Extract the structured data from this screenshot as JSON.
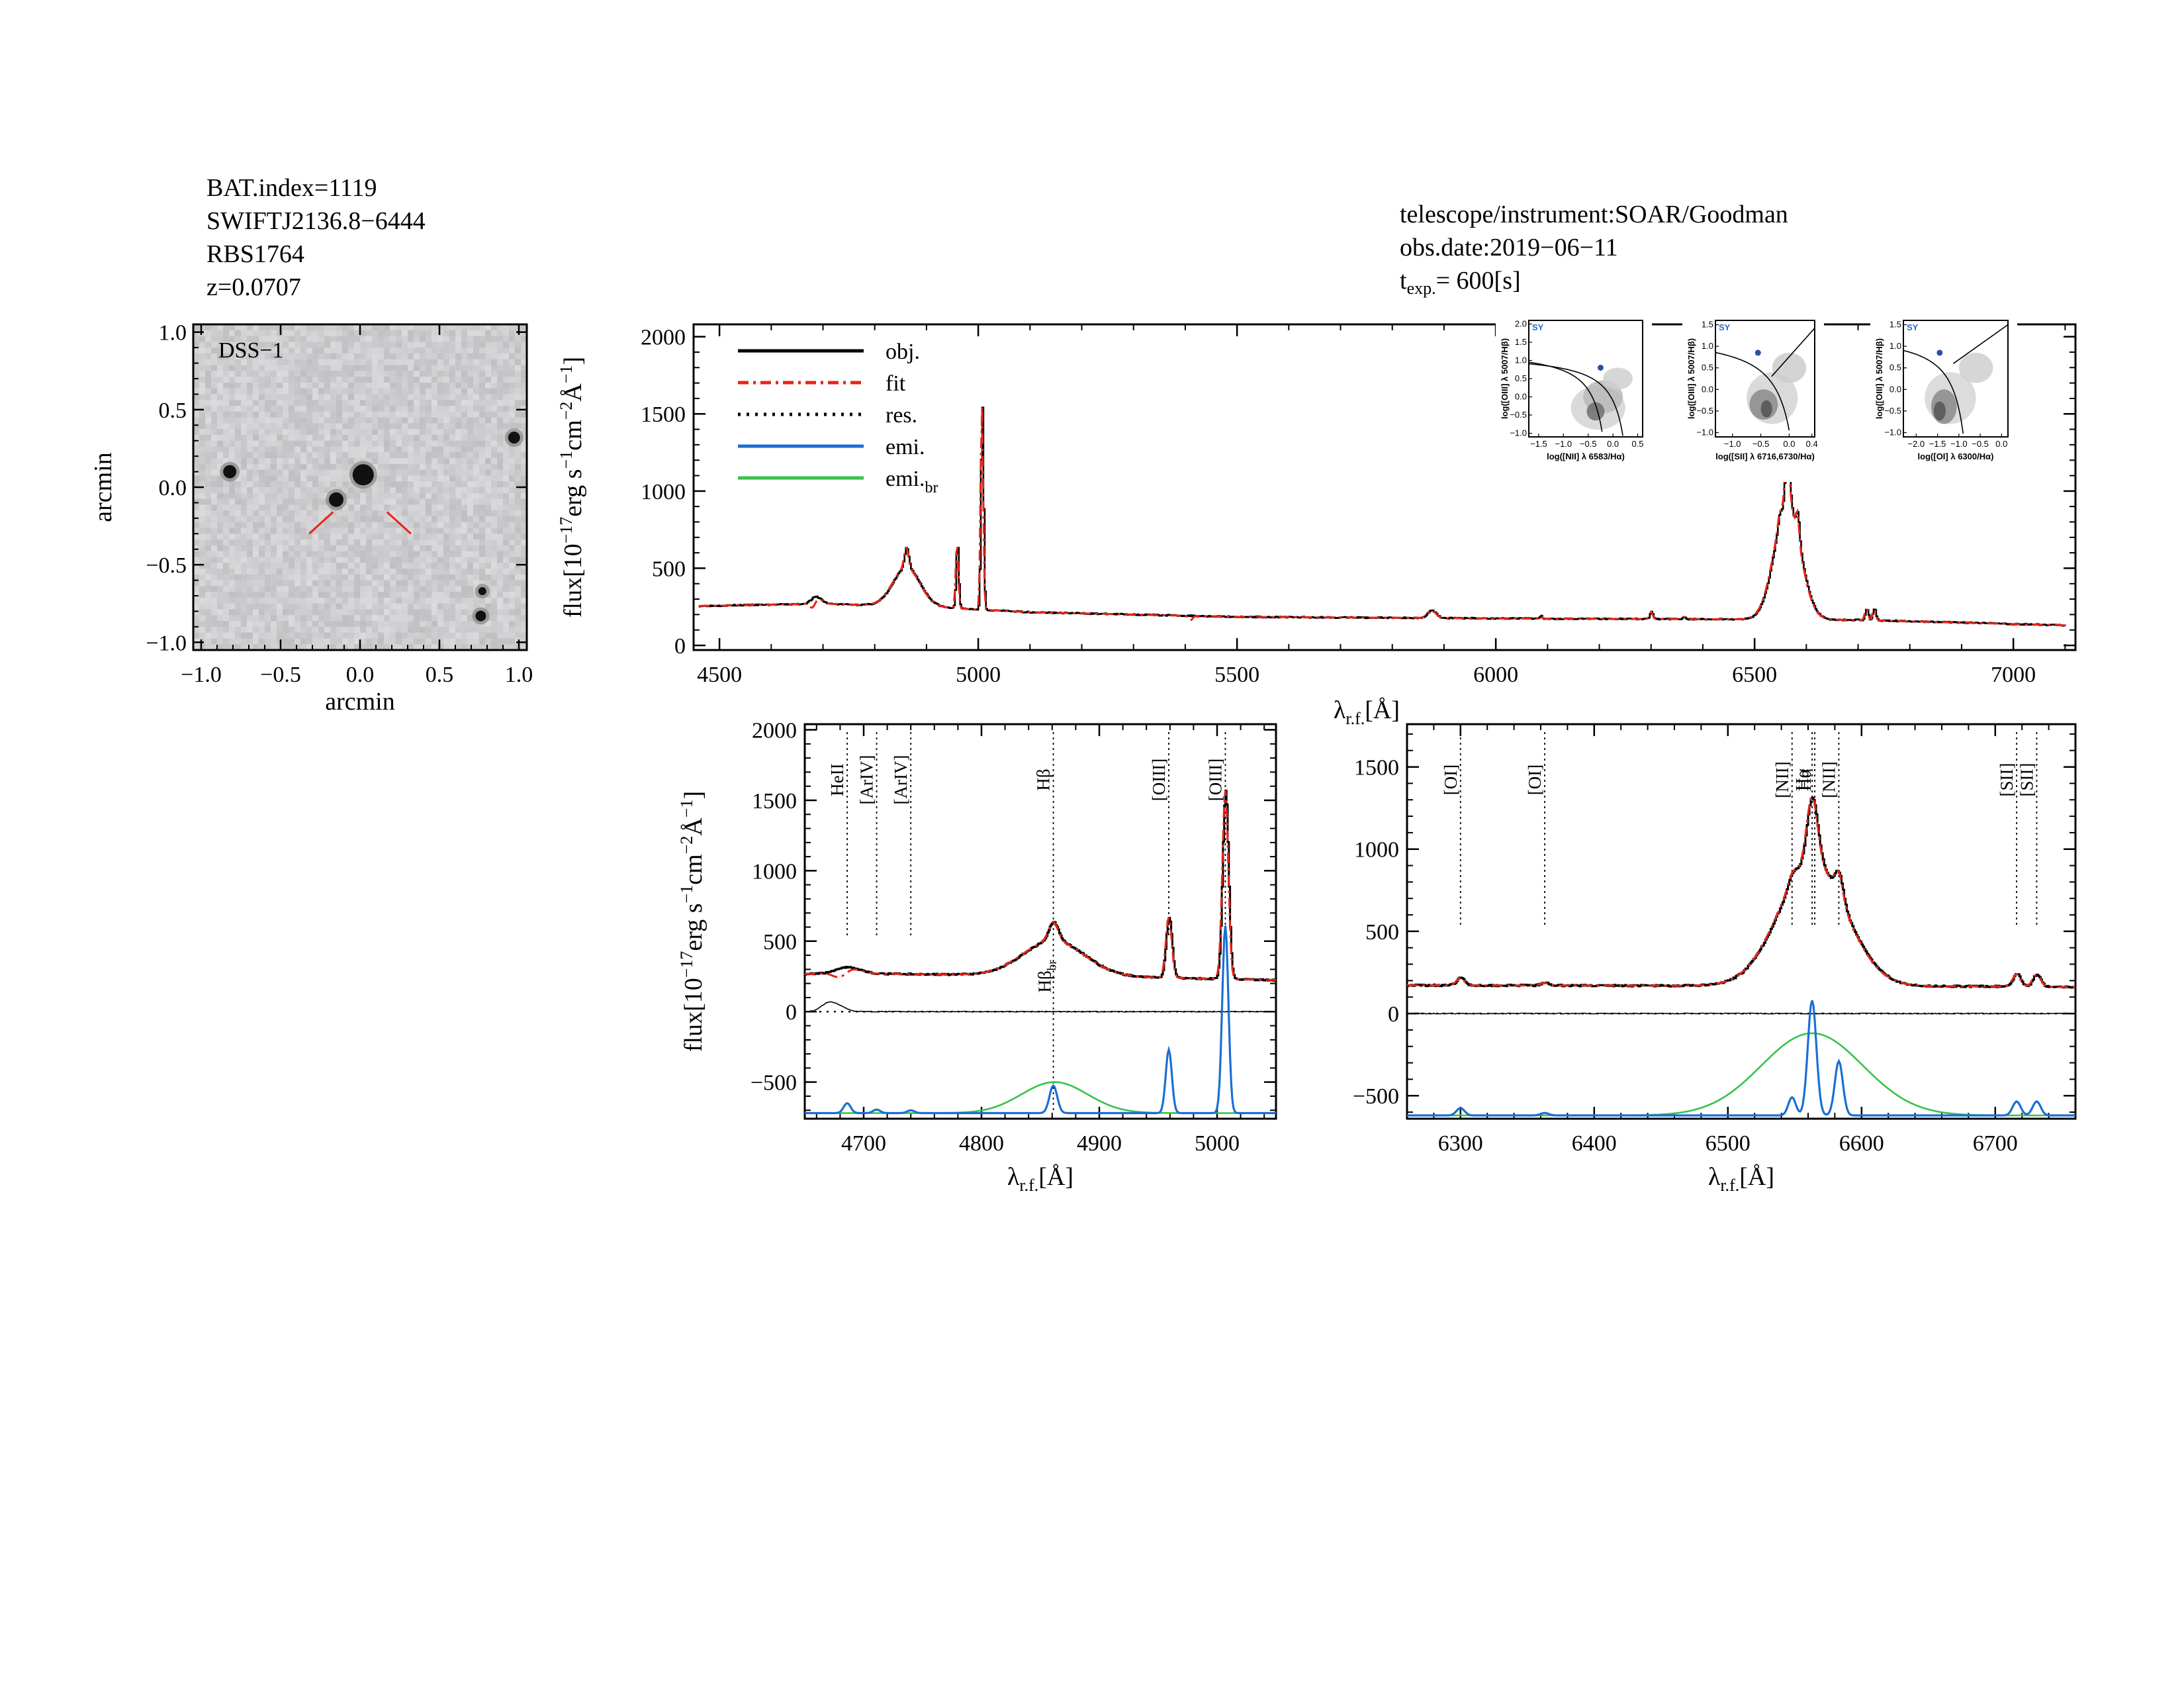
{
  "header": {
    "left": [
      "BAT.index=1119",
      "SWIFTJ2136.8−6444",
      "RBS1764",
      "z=0.0707"
    ],
    "right": [
      "telescope/instrument:SOAR/Goodman",
      "obs.date:2019−06−11"
    ],
    "texp_label": "t",
    "texp_sub": "exp.",
    "texp_value": "=  600[s]"
  },
  "image_panel": {
    "label": "DSS−1",
    "xlabel": "arcmin",
    "ylabel": "arcmin",
    "xticks": [
      "−1.0",
      "−0.5",
      "0.0",
      "0.5",
      "1.0"
    ],
    "yticks": [
      "−1.0",
      "−0.5",
      "0.0",
      "0.5",
      "1.0"
    ],
    "marker_color": "#e8231a"
  },
  "chart_data": [
    {
      "type": "line",
      "name": "full-spectrum",
      "xlim": [
        4450,
        7120
      ],
      "ylim": [
        -30,
        2080
      ],
      "xticks": [
        4500,
        5000,
        5500,
        6000,
        6500,
        7000
      ],
      "yticks": [
        0,
        500,
        1000,
        1500,
        2000
      ],
      "xlabel": "λr.f.[Å]",
      "ylabel": "flux[10⁻¹⁷erg s⁻¹cm⁻²Å⁻¹]",
      "legend": {
        "placement": "top-left",
        "entries": [
          "obj.",
          "fit",
          "res.",
          "emi.",
          "emi.br"
        ]
      },
      "continuum": [
        [
          4450,
          255
        ],
        [
          4700,
          270
        ],
        [
          4900,
          250
        ],
        [
          5100,
          215
        ],
        [
          5500,
          185
        ],
        [
          6000,
          175
        ],
        [
          6400,
          170
        ],
        [
          6700,
          165
        ],
        [
          7100,
          130
        ]
      ],
      "lines_obj": [
        {
          "center": 4686,
          "amp": 45,
          "sigma": 10
        },
        {
          "center": 4861,
          "amp": 250,
          "sigma": 26
        },
        {
          "center": 4861,
          "amp": 130,
          "sigma": 4
        },
        {
          "center": 4959,
          "amp": 430,
          "sigma": 2.5
        },
        {
          "center": 5007,
          "amp": 1340,
          "sigma": 2.5
        },
        {
          "center": 5876,
          "amp": 50,
          "sigma": 8
        },
        {
          "center": 6087,
          "amp": 20,
          "sigma": 2
        },
        {
          "center": 6300,
          "amp": 45,
          "sigma": 3
        },
        {
          "center": 6363,
          "amp": 15,
          "sigma": 3
        },
        {
          "center": 6563,
          "amp": 750,
          "sigma": 25
        },
        {
          "center": 6563,
          "amp": 400,
          "sigma": 4
        },
        {
          "center": 6583,
          "amp": 150,
          "sigma": 3
        },
        {
          "center": 6548,
          "amp": 60,
          "sigma": 3
        },
        {
          "center": 6716,
          "amp": 75,
          "sigma": 3
        },
        {
          "center": 6731,
          "amp": 75,
          "sigma": 3
        }
      ],
      "fit_dips": [
        {
          "center": 4680,
          "amp": -60,
          "sigma": 6
        },
        {
          "center": 5410,
          "amp": -30,
          "sigma": 4
        }
      ]
    },
    {
      "type": "line",
      "name": "hbeta-zoom",
      "xlim": [
        4650,
        5050
      ],
      "ylim": [
        -760,
        2040
      ],
      "xticks": [
        4700,
        4800,
        4900,
        5000
      ],
      "yticks": [
        -500,
        0,
        500,
        1000,
        1500,
        2000
      ],
      "xlabel": "λr.f.[Å]",
      "ylabel": "flux[10⁻¹⁷erg s⁻¹cm⁻²Å⁻¹]",
      "emission_offset": -720,
      "line_labels": [
        {
          "text": "HeII",
          "x": 4686
        },
        {
          "text": "[ArIV]",
          "x": 4711
        },
        {
          "text": "[ArIV]",
          "x": 4740
        },
        {
          "text": "Hβ",
          "x": 4861
        },
        {
          "text": "[OIII]",
          "x": 4959
        },
        {
          "text": "[OIII]",
          "x": 5007
        }
      ],
      "broad_label": {
        "text": "Hβbr",
        "x": 4861
      },
      "narrow_emission": [
        {
          "center": 4686,
          "amp": 70,
          "sigma": 3
        },
        {
          "center": 4711,
          "amp": 25,
          "sigma": 3
        },
        {
          "center": 4740,
          "amp": 20,
          "sigma": 3
        },
        {
          "center": 4861,
          "amp": 195,
          "sigma": 3.3
        },
        {
          "center": 4959,
          "amp": 450,
          "sigma": 2.6
        },
        {
          "center": 5007,
          "amp": 1330,
          "sigma": 2.6
        }
      ],
      "broad_emission": [
        {
          "center": 4862,
          "amp": 220,
          "sigma": 28
        }
      ],
      "continuum": [
        [
          4650,
          300
        ],
        [
          4750,
          285
        ],
        [
          4850,
          265
        ],
        [
          4950,
          250
        ],
        [
          5050,
          240
        ]
      ]
    },
    {
      "type": "line",
      "name": "halpha-zoom",
      "xlim": [
        6260,
        6760
      ],
      "ylim": [
        -640,
        1760
      ],
      "xticks": [
        6300,
        6400,
        6500,
        6600,
        6700
      ],
      "yticks": [
        -500,
        0,
        500,
        1000,
        1500
      ],
      "xlabel": "λr.f.[Å]",
      "emission_offset": -620,
      "line_labels": [
        {
          "text": "[OI]",
          "x": 6300
        },
        {
          "text": "[OI]",
          "x": 6363
        },
        {
          "text": "[NII]",
          "x": 6548
        },
        {
          "text": "Hα",
          "x": 6563
        },
        {
          "text": "Hα",
          "x": 6565
        },
        {
          "text": "[NII]",
          "x": 6583
        },
        {
          "text": "[SII]",
          "x": 6716
        },
        {
          "text": "[SII]",
          "x": 6731
        }
      ],
      "narrow_emission": [
        {
          "center": 6300,
          "amp": 45,
          "sigma": 3
        },
        {
          "center": 6363,
          "amp": 15,
          "sigma": 3
        },
        {
          "center": 6548,
          "amp": 110,
          "sigma": 2.8
        },
        {
          "center": 6563,
          "amp": 700,
          "sigma": 3.2
        },
        {
          "center": 6583,
          "amp": 330,
          "sigma": 3.0
        },
        {
          "center": 6716,
          "amp": 85,
          "sigma": 3.0
        },
        {
          "center": 6731,
          "amp": 85,
          "sigma": 3.0
        }
      ],
      "broad_emission": [
        {
          "center": 6563,
          "amp": 500,
          "sigma": 38
        }
      ],
      "continuum": [
        [
          6260,
          185
        ],
        [
          6400,
          175
        ],
        [
          6500,
          172
        ],
        [
          6650,
          175
        ],
        [
          6760,
          165
        ]
      ]
    }
  ],
  "bpt_insets": [
    {
      "label": "SY",
      "xlabel": "log([NII] λ 6583/Hα)",
      "ylabel": "log([OIII] λ 5007/Hβ)",
      "xticks": [
        "−1.5",
        "−1.0",
        "−0.5",
        "0.0",
        "0.5"
      ],
      "yticks": [
        "−1.0",
        "−0.5",
        "0.0",
        "0.5",
        "1.0",
        "1.5",
        "2.0"
      ],
      "xlim": [
        -1.7,
        0.6
      ],
      "ylim": [
        -1.1,
        2.1
      ],
      "point": [
        -0.25,
        0.8
      ]
    },
    {
      "label": "SY",
      "xlabel": "log([SII] λ 6716,6730/Hα)",
      "ylabel": "log([OIII] λ 5007/Hβ)",
      "xticks": [
        "−1.0",
        "−0.5",
        "0.0",
        "0.4"
      ],
      "yticks": [
        "−1.0",
        "−0.5",
        "0.0",
        "0.5",
        "1.0",
        "1.5"
      ],
      "xlim": [
        -1.3,
        0.45
      ],
      "ylim": [
        -1.1,
        1.6
      ],
      "point": [
        -0.55,
        0.85
      ]
    },
    {
      "label": "SY",
      "xlabel": "log([OI] λ 6300/Hα)",
      "ylabel": "log([OIII] λ 5007/Hβ)",
      "xticks": [
        "−2.0",
        "−1.5",
        "−1.0",
        "−0.5",
        "0.0"
      ],
      "yticks": [
        "−1.0",
        "−0.5",
        "0.0",
        "0.5",
        "1.0",
        "1.5"
      ],
      "xlim": [
        -2.3,
        0.15
      ],
      "ylim": [
        -1.1,
        1.6
      ],
      "point": [
        -1.45,
        0.85
      ]
    }
  ],
  "colors": {
    "obj": "#000000",
    "fit": "#e8231a",
    "emi": "#1a6fd4",
    "emi_br": "#37c24a",
    "bpt_point": "#2a4fa8",
    "bpt_label": "#1a6fd4"
  }
}
